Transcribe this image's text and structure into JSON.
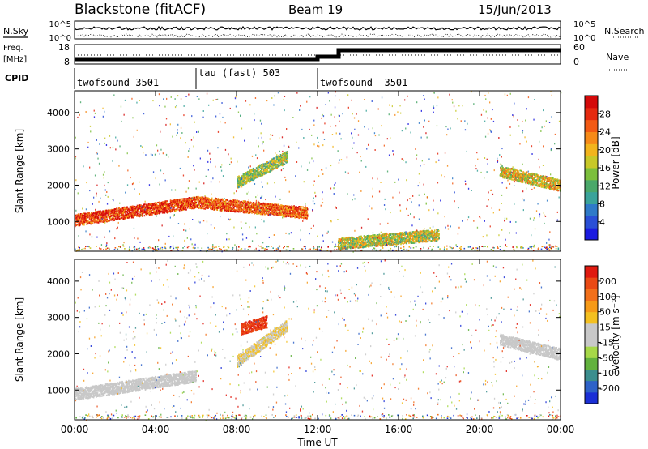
{
  "header": {
    "title": "Blackstone (fitACF)",
    "beam": "Beam 19",
    "date": "15/Jun/2013"
  },
  "panels": {
    "nsky_label": "N.Sky",
    "nsearch_label": "N.Search",
    "nsky_ticks": [
      "10^5",
      "10^0"
    ],
    "nsearch_ticks": [
      "10^5",
      "10^0"
    ],
    "freq_label_1": "Freq.",
    "freq_label_2": "[MHz]",
    "freq_ticks": [
      "18",
      "8"
    ],
    "nave_label": "Nave",
    "nave_ticks": [
      "60",
      "0"
    ],
    "cpid_label": "CPID",
    "cpid_segments": [
      "twofsound 3501",
      "tau (fast) 503",
      "twofsound -3501"
    ]
  },
  "axes": {
    "xlabel": "Time UT",
    "xticks": [
      "00:00",
      "04:00",
      "08:00",
      "12:00",
      "16:00",
      "20:00",
      "00:00"
    ],
    "ylabel": "Slant Range [km]",
    "yticks": [
      "4000",
      "3000",
      "2000",
      "1000"
    ]
  },
  "colorbars": {
    "power_label": "Power [dB]",
    "power_ticks": [
      "28",
      "24",
      "20",
      "16",
      "12",
      "8",
      "4"
    ],
    "power_colors": [
      "#1b1be0",
      "#2a4fd6",
      "#2f7ac8",
      "#3aa39a",
      "#4aa86a",
      "#7cbf3c",
      "#c8c828",
      "#f2b41c",
      "#f68a18",
      "#f25a14",
      "#e52a10",
      "#d40a0a"
    ],
    "velocity_label": "Velocity [m s⁻¹]",
    "velocity_ticks": [
      "200",
      "100",
      "50",
      "15",
      "-15",
      "-50",
      "-100",
      "-200"
    ],
    "velocity_colors": [
      "#1b2fd6",
      "#2e62c8",
      "#3b8e8e",
      "#62b23e",
      "#a6d848",
      "#c8c8c8",
      "#c8c8c8",
      "#f4c020",
      "#f69a18",
      "#f2701a",
      "#ea4a14",
      "#e01a10"
    ]
  },
  "chart_data": [
    {
      "type": "heatmap",
      "title": "",
      "quantity": "Power",
      "xlabel": "Time UT",
      "ylabel": "Slant Range [km]",
      "xlim": [
        0,
        24
      ],
      "ylim": [
        180,
        4600
      ],
      "colorbar_range": [
        0,
        30
      ],
      "features": [
        {
          "t_start": 0,
          "t_end": 6,
          "range_start": 1050,
          "range_end": 1550,
          "power_db": 26
        },
        {
          "t_start": 6,
          "t_end": 11.5,
          "range_start": 1550,
          "range_end": 1250,
          "power_db": 24
        },
        {
          "t_start": 8,
          "t_end": 10.5,
          "range_start": 2100,
          "range_end": 2800,
          "power_db": 14
        },
        {
          "t_start": 13,
          "t_end": 18,
          "range_start": 400,
          "range_end": 650,
          "power_db": 16
        },
        {
          "t_start": 21,
          "t_end": 24,
          "range_start": 2400,
          "range_end": 2000,
          "power_db": 18
        }
      ]
    },
    {
      "type": "heatmap",
      "title": "",
      "quantity": "Velocity",
      "xlabel": "Time UT",
      "ylabel": "Slant Range [km]",
      "xlim": [
        0,
        24
      ],
      "ylim": [
        180,
        4600
      ],
      "colorbar_range": [
        -250,
        250
      ],
      "features": [
        {
          "t_start": 0,
          "t_end": 6,
          "range_start": 900,
          "range_end": 1400,
          "velocity": -10
        },
        {
          "t_start": 8,
          "t_end": 10.5,
          "range_start": 1800,
          "range_end": 2800,
          "velocity": 40
        },
        {
          "t_start": 8.2,
          "t_end": 9.5,
          "range_start": 2700,
          "range_end": 2900,
          "velocity": 200
        },
        {
          "t_start": 21,
          "t_end": 24,
          "range_start": 2400,
          "range_end": 2000,
          "velocity": -10
        }
      ]
    }
  ]
}
